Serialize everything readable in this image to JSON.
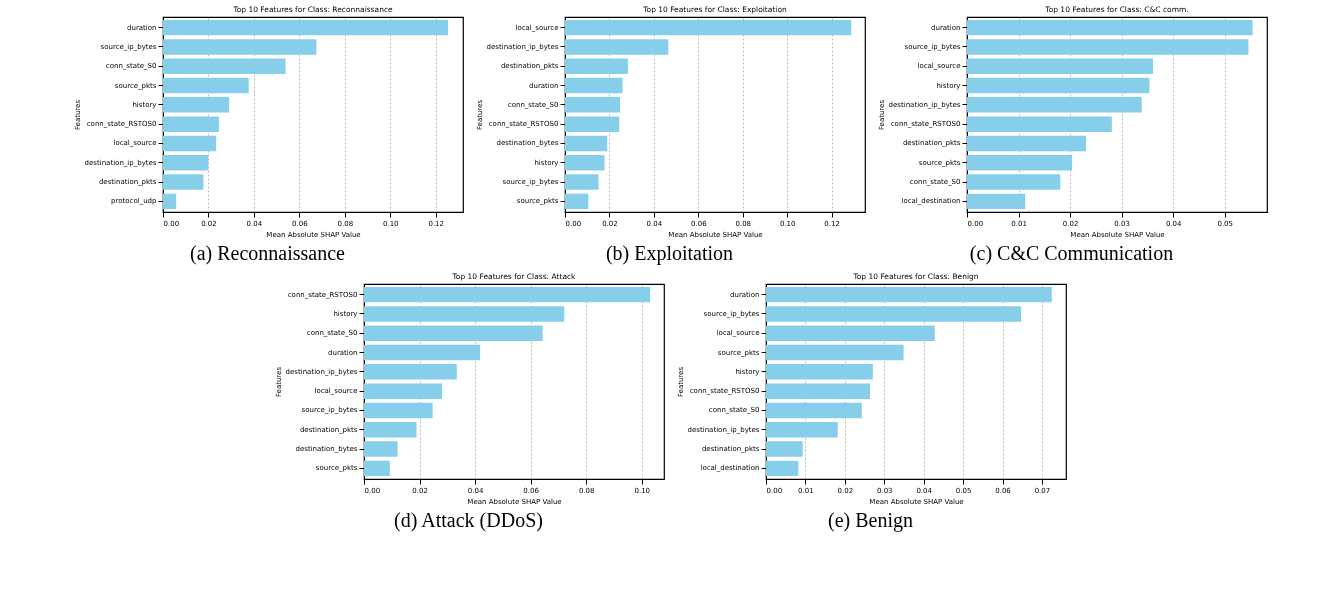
{
  "chart_data": [
    {
      "type": "bar",
      "orientation": "horizontal",
      "title": "Top 10 Features for Class: Reconnaissance",
      "xlabel": "Mean Absolute SHAP Value",
      "ylabel": "Features",
      "annotations": [
        "(a) Reconnaissance"
      ],
      "color": "#87ceeb",
      "grid": "x",
      "xlim": [
        0,
        0.132
      ],
      "xticks": [
        {
          "value": 0,
          "label": "0.00"
        },
        {
          "value": 0.02,
          "label": "0.02"
        },
        {
          "value": 0.04,
          "label": "0.04"
        },
        {
          "value": 0.06,
          "label": "0.06"
        },
        {
          "value": 0.08,
          "label": "0.08"
        },
        {
          "value": 0.1,
          "label": "0.10"
        },
        {
          "value": 0.12,
          "label": "0.12"
        }
      ],
      "categories": [
        "duration",
        "source_ip_bytes",
        "conn_state_S0",
        "source_pkts",
        "history",
        "conn_state_RSTOS0",
        "local_source",
        "destination_ip_bytes",
        "destination_pkts",
        "protocol_udp"
      ],
      "values": [
        0.1254,
        0.0675,
        0.0539,
        0.0377,
        0.0291,
        0.0246,
        0.0234,
        0.0199,
        0.0178,
        0.0058
      ]
    },
    {
      "type": "bar",
      "orientation": "horizontal",
      "title": "Top 10 Features for Class: Exploitation",
      "xlabel": "Mean Absolute SHAP Value",
      "ylabel": "Features",
      "annotations": [
        "(b) Exploitation"
      ],
      "color": "#87ceeb",
      "grid": "x",
      "xlim": [
        0,
        0.135
      ],
      "xticks": [
        {
          "value": 0,
          "label": "0.00"
        },
        {
          "value": 0.02,
          "label": "0.02"
        },
        {
          "value": 0.04,
          "label": "0.04"
        },
        {
          "value": 0.06,
          "label": "0.06"
        },
        {
          "value": 0.08,
          "label": "0.08"
        },
        {
          "value": 0.1,
          "label": "0.10"
        },
        {
          "value": 0.12,
          "label": "0.12"
        }
      ],
      "categories": [
        "local_source",
        "destination_ip_bytes",
        "destination_pkts",
        "duration",
        "conn_state_S0",
        "conn_state_RSTOS0",
        "destination_bytes",
        "history",
        "source_ip_bytes",
        "source_pkts"
      ],
      "values": [
        0.1288,
        0.0465,
        0.0283,
        0.0259,
        0.0248,
        0.0244,
        0.019,
        0.0178,
        0.0151,
        0.0105
      ]
    },
    {
      "type": "bar",
      "orientation": "horizontal",
      "title": "Top 10 Features for Class: C&C comm.",
      "xlabel": "Mean Absolute SHAP Value",
      "ylabel": "Features",
      "annotations": [
        "(c) C&C Communication"
      ],
      "color": "#87ceeb",
      "grid": "x",
      "xlim": [
        0,
        0.0582
      ],
      "xticks": [
        {
          "value": 0,
          "label": "0.00"
        },
        {
          "value": 0.01,
          "label": "0.01"
        },
        {
          "value": 0.02,
          "label": "0.02"
        },
        {
          "value": 0.03,
          "label": "0.03"
        },
        {
          "value": 0.04,
          "label": "0.04"
        },
        {
          "value": 0.05,
          "label": "0.05"
        }
      ],
      "categories": [
        "duration",
        "source_ip_bytes",
        "local_source",
        "history",
        "destination_ip_bytes",
        "conn_state_RSTOS0",
        "destination_pkts",
        "source_pkts",
        "conn_state_S0",
        "local_destination"
      ],
      "values": [
        0.0554,
        0.0546,
        0.0361,
        0.0354,
        0.0339,
        0.0281,
        0.0231,
        0.0204,
        0.0181,
        0.0113
      ]
    },
    {
      "type": "bar",
      "orientation": "horizontal",
      "title": "Top 10 Features for Class: Attack",
      "xlabel": "Mean Absolute SHAP Value",
      "ylabel": "Features",
      "annotations": [
        "(d) Attack (DDoS)"
      ],
      "color": "#87ceeb",
      "grid": "x",
      "xlim": [
        0,
        0.108
      ],
      "xticks": [
        {
          "value": 0,
          "label": "0.00"
        },
        {
          "value": 0.02,
          "label": "0.02"
        },
        {
          "value": 0.04,
          "label": "0.04"
        },
        {
          "value": 0.06,
          "label": "0.06"
        },
        {
          "value": 0.08,
          "label": "0.08"
        },
        {
          "value": 0.1,
          "label": "0.10"
        }
      ],
      "categories": [
        "conn_state_RSTOS0",
        "history",
        "conn_state_S0",
        "duration",
        "destination_ip_bytes",
        "local_source",
        "source_ip_bytes",
        "destination_pkts",
        "destination_bytes",
        "source_pkts"
      ],
      "values": [
        0.103,
        0.0721,
        0.0643,
        0.0418,
        0.0334,
        0.0281,
        0.0247,
        0.0189,
        0.0121,
        0.0093
      ]
    },
    {
      "type": "bar",
      "orientation": "horizontal",
      "title": "Top 10 Features for Class: Benign",
      "xlabel": "Mean Absolute SHAP Value",
      "ylabel": "Features",
      "annotations": [
        "(e) Benign"
      ],
      "color": "#87ceeb",
      "grid": "x",
      "xlim": [
        0,
        0.0761
      ],
      "xticks": [
        {
          "value": 0,
          "label": "0.00"
        },
        {
          "value": 0.01,
          "label": "0.01"
        },
        {
          "value": 0.02,
          "label": "0.02"
        },
        {
          "value": 0.03,
          "label": "0.03"
        },
        {
          "value": 0.04,
          "label": "0.04"
        },
        {
          "value": 0.05,
          "label": "0.05"
        },
        {
          "value": 0.06,
          "label": "0.06"
        },
        {
          "value": 0.07,
          "label": "0.07"
        }
      ],
      "categories": [
        "duration",
        "source_ip_bytes",
        "local_source",
        "source_pkts",
        "history",
        "conn_state_RSTOS0",
        "conn_state_S0",
        "destination_ip_bytes",
        "destination_pkts",
        "local_destination"
      ],
      "values": [
        0.0725,
        0.0647,
        0.0428,
        0.0349,
        0.0271,
        0.0264,
        0.0243,
        0.0182,
        0.0093,
        0.0082
      ]
    }
  ]
}
